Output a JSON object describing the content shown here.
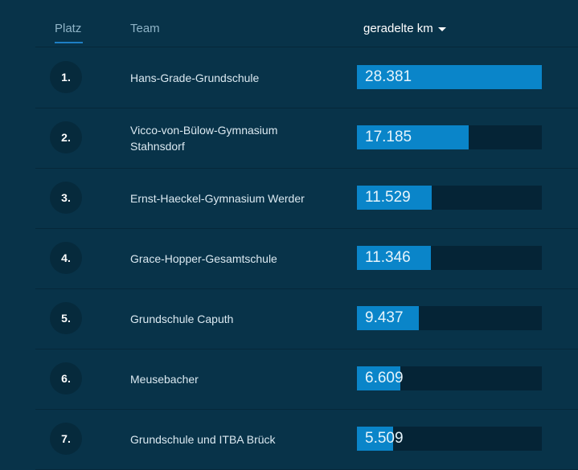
{
  "header": {
    "rank_label": "Platz",
    "team_label": "Team",
    "km_label": "geradelte km",
    "sort_icon": "caret-down-icon"
  },
  "rows": [
    {
      "rank": "1.",
      "team": "Hans-Grade-Grundschule",
      "km": "28.381",
      "pct": 100
    },
    {
      "rank": "2.",
      "team": "Vicco-von-Bülow-Gymnasium Stahnsdorf",
      "km": "17.185",
      "pct": 60.6
    },
    {
      "rank": "3.",
      "team": "Ernst-Haeckel-Gymnasium Werder",
      "km": "11.529",
      "pct": 40.6
    },
    {
      "rank": "4.",
      "team": "Grace-Hopper-Gesamtschule",
      "km": "11.346",
      "pct": 40.0
    },
    {
      "rank": "5.",
      "team": "Grundschule Caputh",
      "km": "9.437",
      "pct": 33.3
    },
    {
      "rank": "6.",
      "team": "Meusebacher",
      "km": "6.609",
      "pct": 23.3
    },
    {
      "rank": "7.",
      "team": "Grundschule und ITBA Brück",
      "km": "5.509",
      "pct": 19.4
    }
  ],
  "colors": {
    "background": "#083349",
    "bar": "#0a85c9",
    "track": "#052436",
    "accent_underline": "#1e7fc4"
  }
}
